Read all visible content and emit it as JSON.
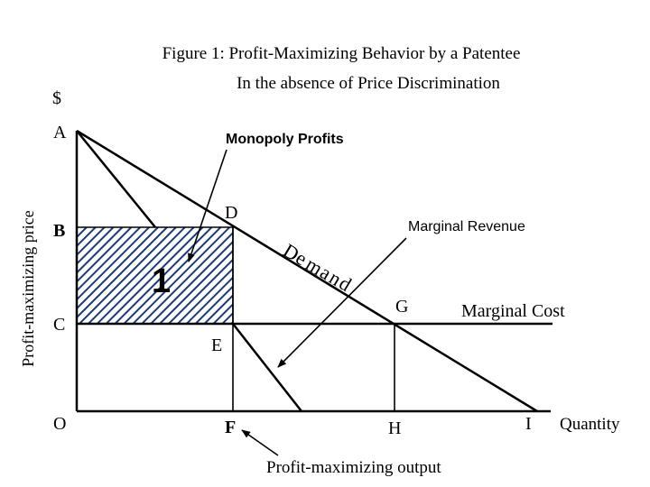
{
  "title": {
    "line1": "Figure 1:  Profit-Maximizing Behavior by a Patentee",
    "line2": "In the absence of Price Discrimination"
  },
  "axes": {
    "y_unit": "$",
    "y_label": "Profit-maximizing price",
    "x_label": "Quantity"
  },
  "points": {
    "A": "A",
    "B": "B",
    "C": "C",
    "D": "D",
    "E": "E",
    "F": "F",
    "G": "G",
    "H": "H",
    "I": "I",
    "O": "O"
  },
  "curves": {
    "demand": [
      "D",
      "e",
      "m",
      "a",
      "n",
      "d"
    ],
    "marginal_revenue": "Marginal Revenue",
    "marginal_cost": "Marginal Cost"
  },
  "annotations": {
    "monopoly_profits": "Monopoly Profits",
    "profit_region": "1",
    "output": "Profit-maximizing output"
  },
  "colors": {
    "hatch": "#1f3b73",
    "ink": "#000000"
  }
}
